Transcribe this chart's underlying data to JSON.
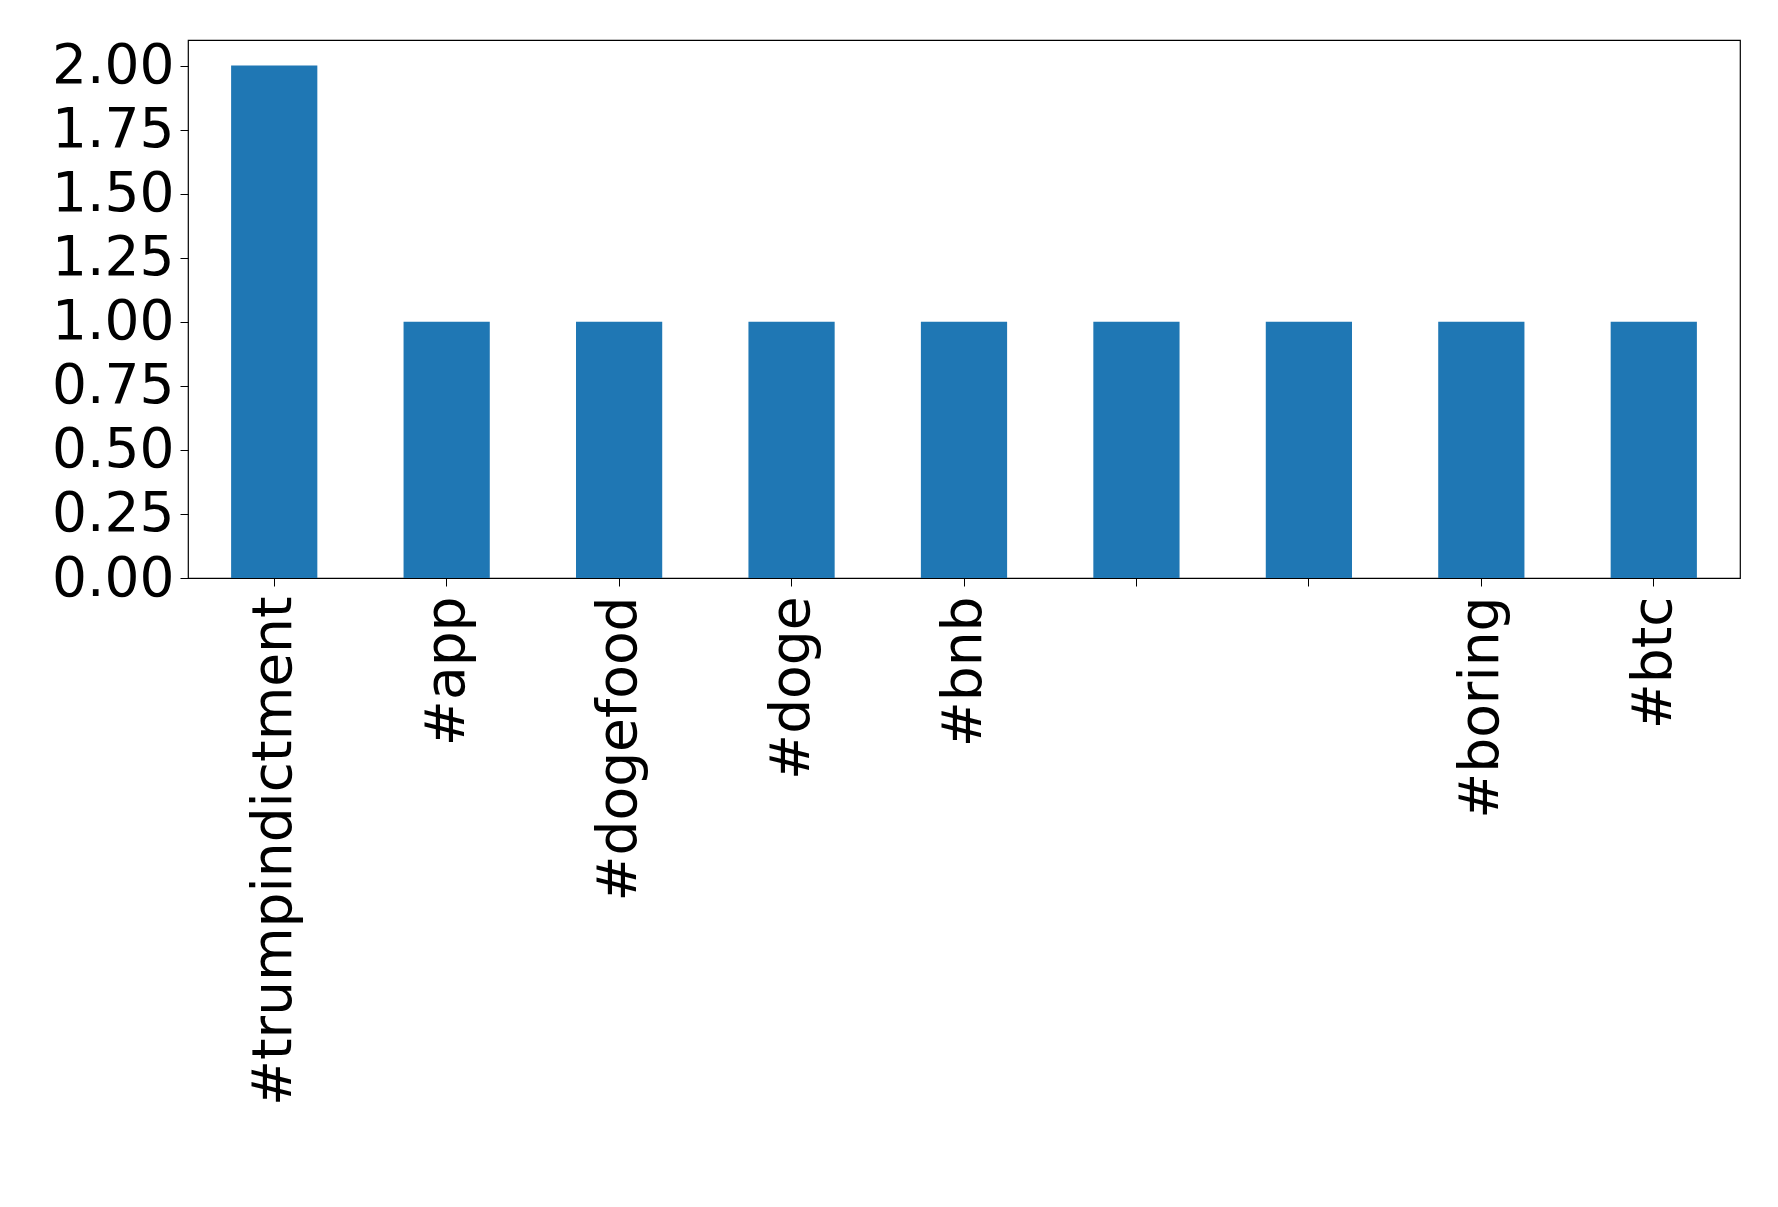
{
  "chart_data": {
    "type": "bar",
    "categories": [
      "#trumpindictment",
      "#app",
      "#dogefood",
      "#doge",
      "#bnb",
      null,
      null,
      "#boring",
      "#btc"
    ],
    "values": [
      2,
      1,
      1,
      1,
      1,
      1,
      1,
      1,
      1
    ],
    "color": "#1f77b4",
    "ylim": [
      0,
      2.1
    ],
    "yticks": [
      {
        "value": 0,
        "label": "0.00"
      },
      {
        "value": 0.25,
        "label": "0.25"
      },
      {
        "value": 0.5,
        "label": "0.50"
      },
      {
        "value": 0.75,
        "label": "0.75"
      },
      {
        "value": 1,
        "label": "1.00"
      },
      {
        "value": 1.25,
        "label": "1.25"
      },
      {
        "value": 1.5,
        "label": "1.50"
      },
      {
        "value": 1.75,
        "label": "1.75"
      },
      {
        "value": 2,
        "label": "2.00"
      }
    ],
    "grid": false
  }
}
